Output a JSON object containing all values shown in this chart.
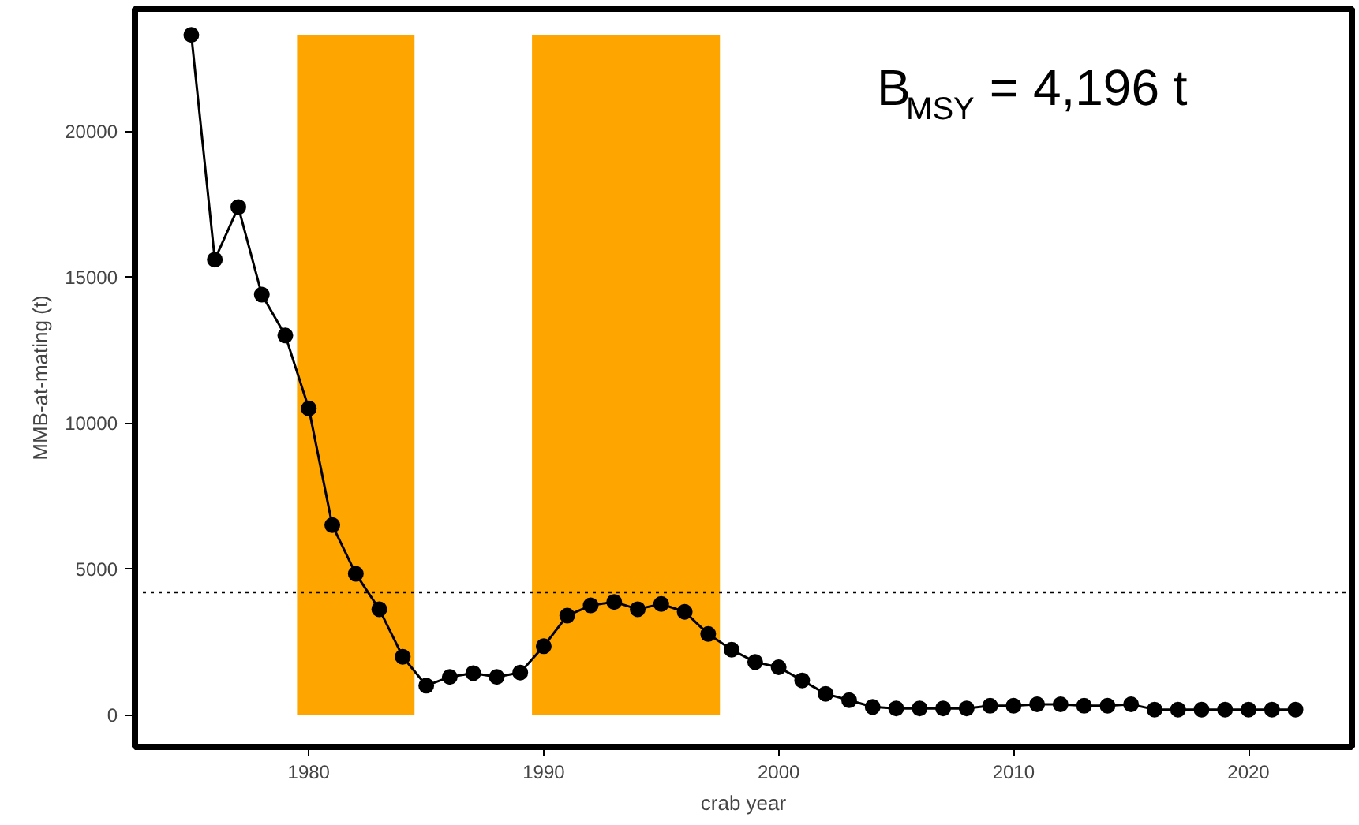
{
  "chart_data": {
    "type": "line",
    "xlabel": "crab year",
    "ylabel": "MMB-at-mating (t)",
    "x": [
      1975,
      1976,
      1977,
      1978,
      1979,
      1980,
      1981,
      1982,
      1983,
      1984,
      1985,
      1986,
      1987,
      1988,
      1989,
      1990,
      1991,
      1992,
      1993,
      1994,
      1995,
      1996,
      1997,
      1998,
      1999,
      2000,
      2001,
      2002,
      2003,
      2004,
      2005,
      2006,
      2007,
      2008,
      2009,
      2010,
      2011,
      2012,
      2013,
      2014,
      2015,
      2016,
      2017,
      2018,
      2019,
      2020,
      2021,
      2022
    ],
    "series": [
      {
        "color": "#000000",
        "values": [
          23300,
          15600,
          17400,
          14400,
          13000,
          10500,
          6500,
          4830,
          3620,
          1990,
          1000,
          1300,
          1430,
          1300,
          1450,
          2350,
          3400,
          3750,
          3870,
          3620,
          3800,
          3530,
          2770,
          2230,
          1810,
          1630,
          1180,
          720,
          500,
          270,
          220,
          220,
          220,
          220,
          310,
          310,
          360,
          360,
          310,
          310,
          360,
          180,
          180,
          180,
          180,
          180,
          180,
          180
        ]
      }
    ],
    "marker": "circle",
    "line_style": "solid",
    "grid": false,
    "xlim": [
      1972.6,
      2024.4
    ],
    "ylim": [
      -1100,
      24200
    ],
    "xticks": [
      1980,
      1990,
      2000,
      2010,
      2020
    ],
    "yticks": [
      0,
      5000,
      10000,
      15000,
      20000
    ],
    "bands": [
      {
        "axis": "x",
        "from": 1979.5,
        "to": 1984.5,
        "color": "#ffa500"
      },
      {
        "axis": "x",
        "from": 1989.5,
        "to": 1997.5,
        "color": "#ffa500"
      }
    ],
    "annotations": [
      "B$_{MSY}$ = 4,196 t"
    ],
    "ref_lines": [
      {
        "axis": "y",
        "value": 4196,
        "line_style": "dotted",
        "color": "#000000"
      }
    ]
  }
}
